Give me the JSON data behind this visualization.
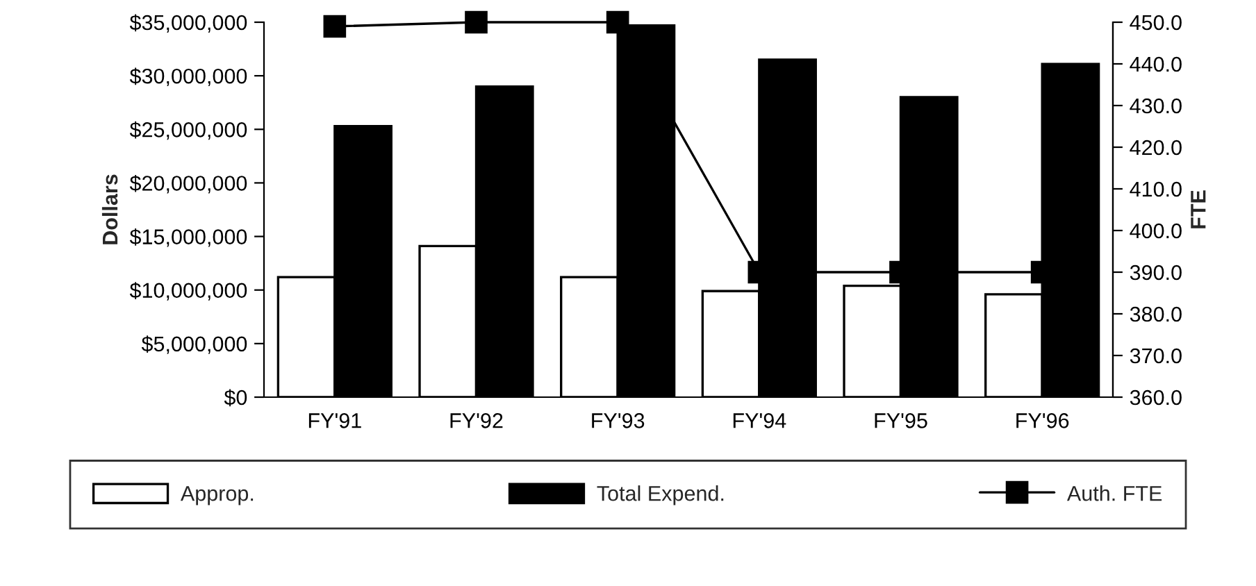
{
  "chart_data": {
    "type": "bar",
    "categories": [
      "FY'91",
      "FY'92",
      "FY'93",
      "FY'94",
      "FY'95",
      "FY'96"
    ],
    "ylabel": "Dollars",
    "y2label": "FTE",
    "series": [
      {
        "name": "Approp.",
        "color": "#ffffff",
        "values": [
          11200000,
          14100000,
          11200000,
          9900000,
          10400000,
          9600000
        ]
      },
      {
        "name": "Total Expend.",
        "color": "#000000",
        "values": [
          25300000,
          29000000,
          34700000,
          31500000,
          28000000,
          31100000
        ]
      },
      {
        "name": "Auth. FTE",
        "type": "line",
        "axis": "y2",
        "color": "#000000",
        "marker": "square",
        "values": [
          449,
          450,
          450,
          390,
          390,
          390
        ]
      }
    ],
    "ylim": [
      0,
      35000000
    ],
    "yticks": [
      {
        "value": 0,
        "label": "$0"
      },
      {
        "value": 5000000,
        "label": "$5,000,000"
      },
      {
        "value": 10000000,
        "label": "$10,000,000"
      },
      {
        "value": 15000000,
        "label": "$15,000,000"
      },
      {
        "value": 20000000,
        "label": "$20,000,000"
      },
      {
        "value": 25000000,
        "label": "$25,000,000"
      },
      {
        "value": 30000000,
        "label": "$30,000,000"
      },
      {
        "value": 35000000,
        "label": "$35,000,000"
      }
    ],
    "y2lim": [
      360,
      450
    ],
    "y2ticks": [
      {
        "value": 360,
        "label": "360.0"
      },
      {
        "value": 370,
        "label": "370.0"
      },
      {
        "value": 380,
        "label": "380.0"
      },
      {
        "value": 390,
        "label": "390.0"
      },
      {
        "value": 400,
        "label": "400.0"
      },
      {
        "value": 410,
        "label": "410.0"
      },
      {
        "value": 420,
        "label": "420.0"
      },
      {
        "value": 430,
        "label": "430.0"
      },
      {
        "value": 440,
        "label": "440.0"
      },
      {
        "value": 450,
        "label": "450.0"
      }
    ],
    "grid": false,
    "legend": "bottom"
  }
}
